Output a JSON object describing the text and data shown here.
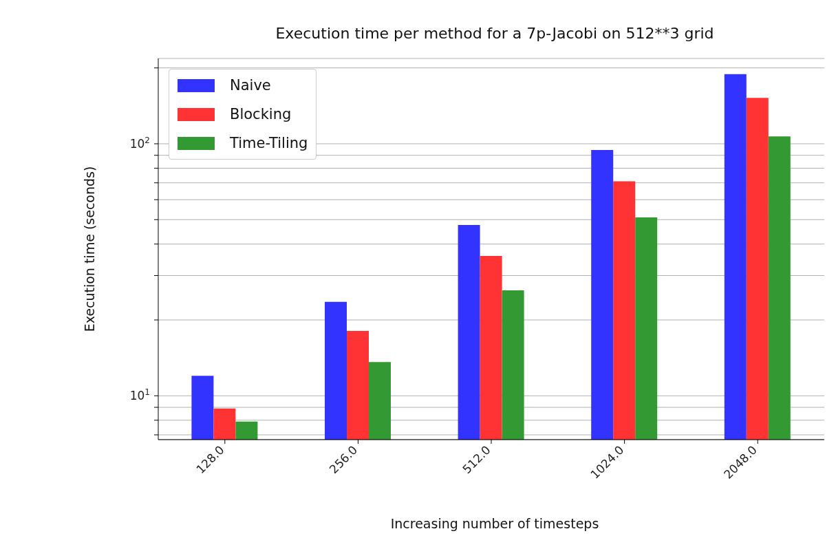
{
  "chart_data": {
    "type": "bar",
    "title": "Execution time per method for a 7p-Jacobi on 512**3 grid",
    "xlabel": "Increasing number of timesteps",
    "ylabel": "Execution time (seconds)",
    "categories": [
      "128.0",
      "256.0",
      "512.0",
      "1024.0",
      "2048.0"
    ],
    "series": [
      {
        "name": "Naive",
        "color": "#3333ff",
        "values": [
          12.0,
          23.6,
          47.6,
          94.5,
          189
        ]
      },
      {
        "name": "Blocking",
        "color": "#ff3333",
        "values": [
          8.9,
          18.1,
          35.9,
          71,
          152
        ]
      },
      {
        "name": "Time-Tiling",
        "color": "#339933",
        "values": [
          7.9,
          13.6,
          26.2,
          51,
          107
        ]
      }
    ],
    "log": true,
    "ylim": [
      6.7,
      218
    ],
    "yticks": [
      {
        "value": 7,
        "label": null
      },
      {
        "value": 8,
        "label": null
      },
      {
        "value": 9,
        "label": null
      },
      {
        "value": 10,
        "label": "10$^{1}$"
      },
      {
        "value": 20,
        "label": null
      },
      {
        "value": 30,
        "label": null
      },
      {
        "value": 40,
        "label": null
      },
      {
        "value": 50,
        "label": null
      },
      {
        "value": 60,
        "label": null
      },
      {
        "value": 70,
        "label": null
      },
      {
        "value": 80,
        "label": null
      },
      {
        "value": 90,
        "label": null
      },
      {
        "value": 100,
        "label": "10$^{2}$"
      },
      {
        "value": 200,
        "label": null
      }
    ],
    "grid": "y",
    "legend": "top left"
  }
}
